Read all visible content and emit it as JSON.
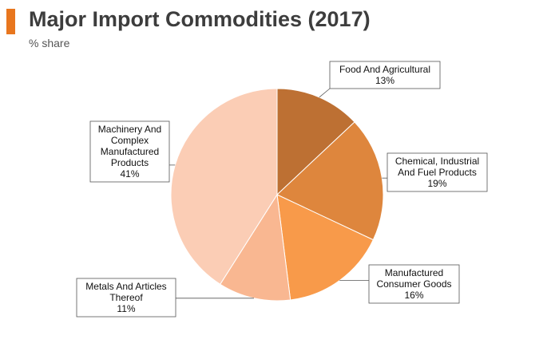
{
  "header": {
    "title": "Major Import Commodities (2017)",
    "subtitle": "% share",
    "accent_color": "#e8761e"
  },
  "chart_data": {
    "type": "pie",
    "title": "Major Import Commodities (2017)",
    "subtitle": "% share",
    "legend": "none",
    "slices": [
      {
        "label_lines": [
          "Food And Agricultural"
        ],
        "value_label": "13%",
        "value": 13,
        "color": "#bd7033"
      },
      {
        "label_lines": [
          "Chemical, Industrial",
          "And Fuel Products"
        ],
        "value_label": "19%",
        "value": 19,
        "color": "#de863d"
      },
      {
        "label_lines": [
          "Manufactured",
          "Consumer Goods"
        ],
        "value_label": "16%",
        "value": 16,
        "color": "#f89a4a"
      },
      {
        "label_lines": [
          "Metals And Articles",
          "Thereof"
        ],
        "value_label": "11%",
        "value": 11,
        "color": "#f9b791"
      },
      {
        "label_lines": [
          "Machinery And",
          "Complex",
          "Manufactured",
          "Products"
        ],
        "value_label": "41%",
        "value": 41,
        "color": "#fbcdb5"
      }
    ]
  }
}
